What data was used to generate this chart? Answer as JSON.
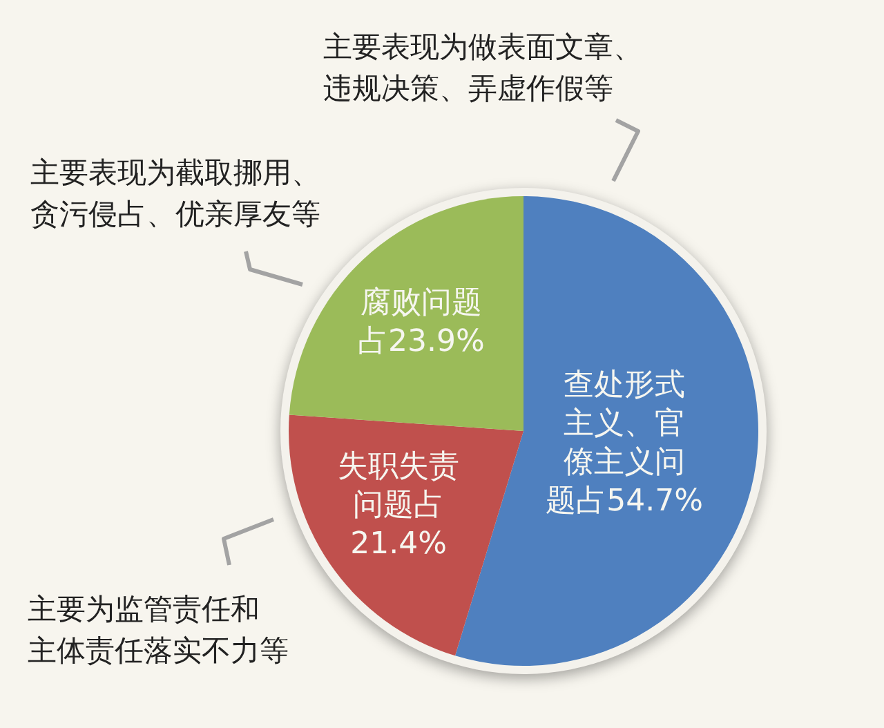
{
  "chart_data": {
    "type": "pie",
    "categories": [
      "查处形式主义、官僚主义问题占",
      "失职失责问题占",
      "腐败问题占"
    ],
    "values": [
      54.7,
      21.4,
      23.9
    ],
    "value_labels": [
      "54.7%",
      "21.4%",
      "23.9%"
    ],
    "colors": [
      "#4f80bf",
      "#c0504d",
      "#9bbb59"
    ],
    "annotations": [
      "主要表现为做表面文章、违规决策、弄虚作假等",
      "主要表现为截取挪用、贪污侵占、优亲厚友等",
      "主要为监管责任和主体责任落实不力等"
    ]
  }
}
